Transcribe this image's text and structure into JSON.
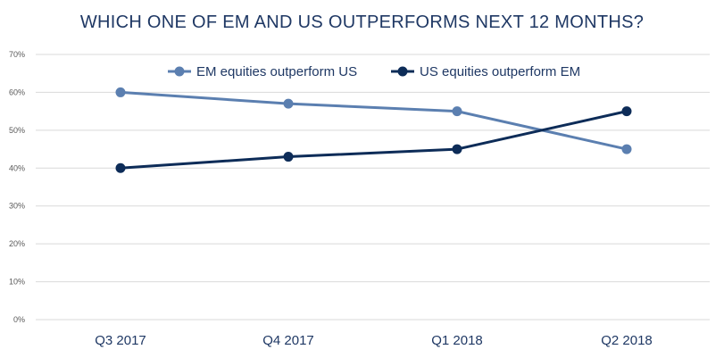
{
  "chart_data": {
    "type": "line",
    "title": "WHICH ONE OF EM AND US OUTPERFORMS NEXT 12 MONTHS?",
    "categories": [
      "Q3 2017",
      "Q4 2017",
      "Q1 2018",
      "Q2 2018"
    ],
    "yticks": [
      "0%",
      "10%",
      "20%",
      "30%",
      "40%",
      "50%",
      "60%",
      "70%"
    ],
    "ylim": [
      0,
      70
    ],
    "grid": true,
    "legend_position": "top-center",
    "series": [
      {
        "name": "EM equities outperform US",
        "values": [
          60,
          57,
          55,
          45
        ],
        "color": "#5b7fb0"
      },
      {
        "name": "US equities outperform EM",
        "values": [
          40,
          43,
          45,
          55
        ],
        "color": "#0d2c58"
      }
    ]
  }
}
